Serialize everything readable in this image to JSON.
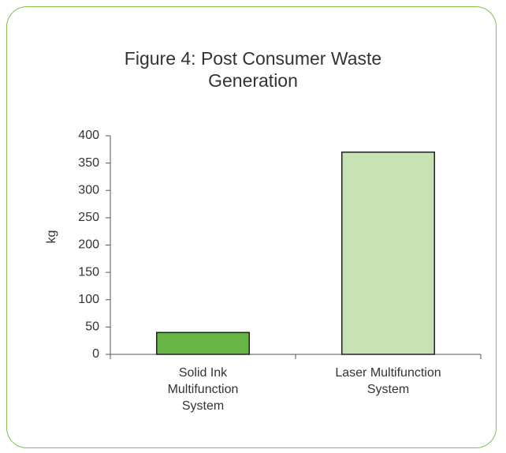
{
  "chart_data": {
    "type": "bar",
    "title": "Figure 4: Post Consumer Waste Generation",
    "y_label": "kg",
    "categories": [
      "Solid Ink Multifunction System",
      "Laser Multifunction System"
    ],
    "values": [
      40,
      370
    ],
    "colors": [
      "#67b545",
      "#c7e3b3"
    ],
    "ylim": [
      0,
      400
    ],
    "yticks": [
      0,
      50,
      100,
      150,
      200,
      250,
      300,
      350,
      400
    ],
    "grid": false
  }
}
